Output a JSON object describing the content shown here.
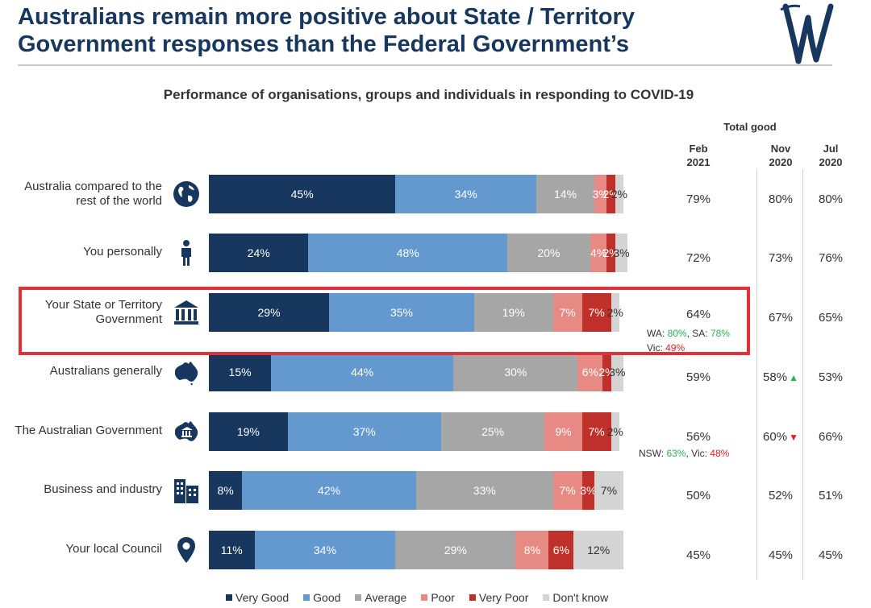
{
  "header": {
    "title_line1": "Australians remain more positive about State / Territory",
    "title_line2": "Government responses than the Federal Government’s"
  },
  "chart_data": {
    "type": "bar",
    "orientation": "horizontal",
    "stacked": true,
    "title": "Performance of organisations, groups and individuals in responding to COVID-19",
    "categories": [
      "Australia compared to the rest of the world",
      "You personally",
      "Your State or Territory Government",
      "Australians generally",
      "The Australian Government",
      "Business and industry",
      "Your local Council"
    ],
    "series": [
      {
        "name": "Very Good",
        "color": "#17375e",
        "values": [
          45,
          24,
          29,
          15,
          19,
          8,
          11
        ]
      },
      {
        "name": "Good",
        "color": "#6399cf",
        "values": [
          34,
          48,
          35,
          44,
          37,
          42,
          34
        ]
      },
      {
        "name": "Average",
        "color": "#a6a6a6",
        "values": [
          14,
          20,
          19,
          30,
          25,
          33,
          29
        ]
      },
      {
        "name": "Poor",
        "color": "#e88a84",
        "values": [
          3,
          4,
          7,
          6,
          9,
          7,
          8
        ]
      },
      {
        "name": "Very Poor",
        "color": "#c0302a",
        "values": [
          2,
          2,
          7,
          2,
          7,
          3,
          6
        ]
      },
      {
        "name": "Don't know",
        "color": "#d4d4d4",
        "values": [
          2,
          3,
          2,
          3,
          2,
          7,
          12
        ]
      }
    ],
    "legend_position": "bottom",
    "total_good": {
      "header": "Total good",
      "columns": [
        {
          "label": "Feb\n2021",
          "values": [
            "79%",
            "72%",
            "64%",
            "59%",
            "56%",
            "50%",
            "45%"
          ]
        },
        {
          "label": "Nov\n2020",
          "values": [
            "80%",
            "73%",
            "67%",
            "58%",
            "60%",
            "52%",
            "45%"
          ]
        },
        {
          "label": "Jul\n2020",
          "values": [
            "80%",
            "76%",
            "65%",
            "53%",
            "66%",
            "51%",
            "45%"
          ]
        }
      ],
      "nov_markers": {
        "3": "up",
        "4": "down"
      }
    },
    "annotations": {
      "state": {
        "wa_label": "WA: ",
        "wa_value": "80%",
        "sep": ", SA: ",
        "sa_value": "78%",
        "vic_label": "Vic: ",
        "vic_value": "49%"
      },
      "federal": {
        "nsw_label": "NSW: ",
        "nsw_value": "63%",
        "sep": ", Vic: ",
        "vic_value": "48%"
      }
    }
  },
  "rows": [
    {
      "label_line1": "Australia compared to the",
      "label_line2": "rest of the world",
      "icon": "globe-icon"
    },
    {
      "label_line1": "You personally",
      "label_line2": "",
      "icon": "person-icon"
    },
    {
      "label_line1": "Your State or Territory",
      "label_line2": "Government",
      "icon": "government-building-icon"
    },
    {
      "label_line1": "Australians generally",
      "label_line2": "",
      "icon": "australia-map-icon"
    },
    {
      "label_line1": "The Australian Government",
      "label_line2": "",
      "icon": "australia-government-icon"
    },
    {
      "label_line1": "Business and industry",
      "label_line2": "",
      "icon": "office-buildings-icon"
    },
    {
      "label_line1": "Your local Council",
      "label_line2": "",
      "icon": "location-pin-icon"
    }
  ],
  "colors": {
    "brand": "#17375e",
    "highlight": "#e0303a"
  }
}
